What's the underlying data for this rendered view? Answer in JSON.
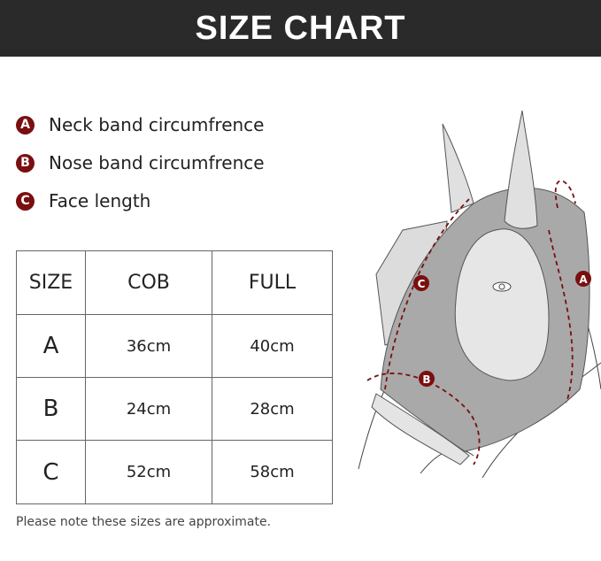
{
  "header": {
    "title": "SIZE CHART"
  },
  "legend": [
    {
      "key": "A",
      "label": "Neck band circumfrence"
    },
    {
      "key": "B",
      "label": "Nose band circumfrence"
    },
    {
      "key": "C",
      "label": "Face length"
    }
  ],
  "table": {
    "headers": [
      "SIZE",
      "COB",
      "FULL"
    ],
    "rows": [
      [
        "A",
        "36cm",
        "40cm"
      ],
      [
        "B",
        "24cm",
        "28cm"
      ],
      [
        "C",
        "52cm",
        "58cm"
      ]
    ]
  },
  "note": "Please note these sizes are approximate.",
  "diagram": {
    "labels": [
      "A",
      "B",
      "C"
    ]
  },
  "colors": {
    "header_bg": "#2a2a2a",
    "badge": "#7a0f10",
    "mask": "#a9a9a9"
  }
}
